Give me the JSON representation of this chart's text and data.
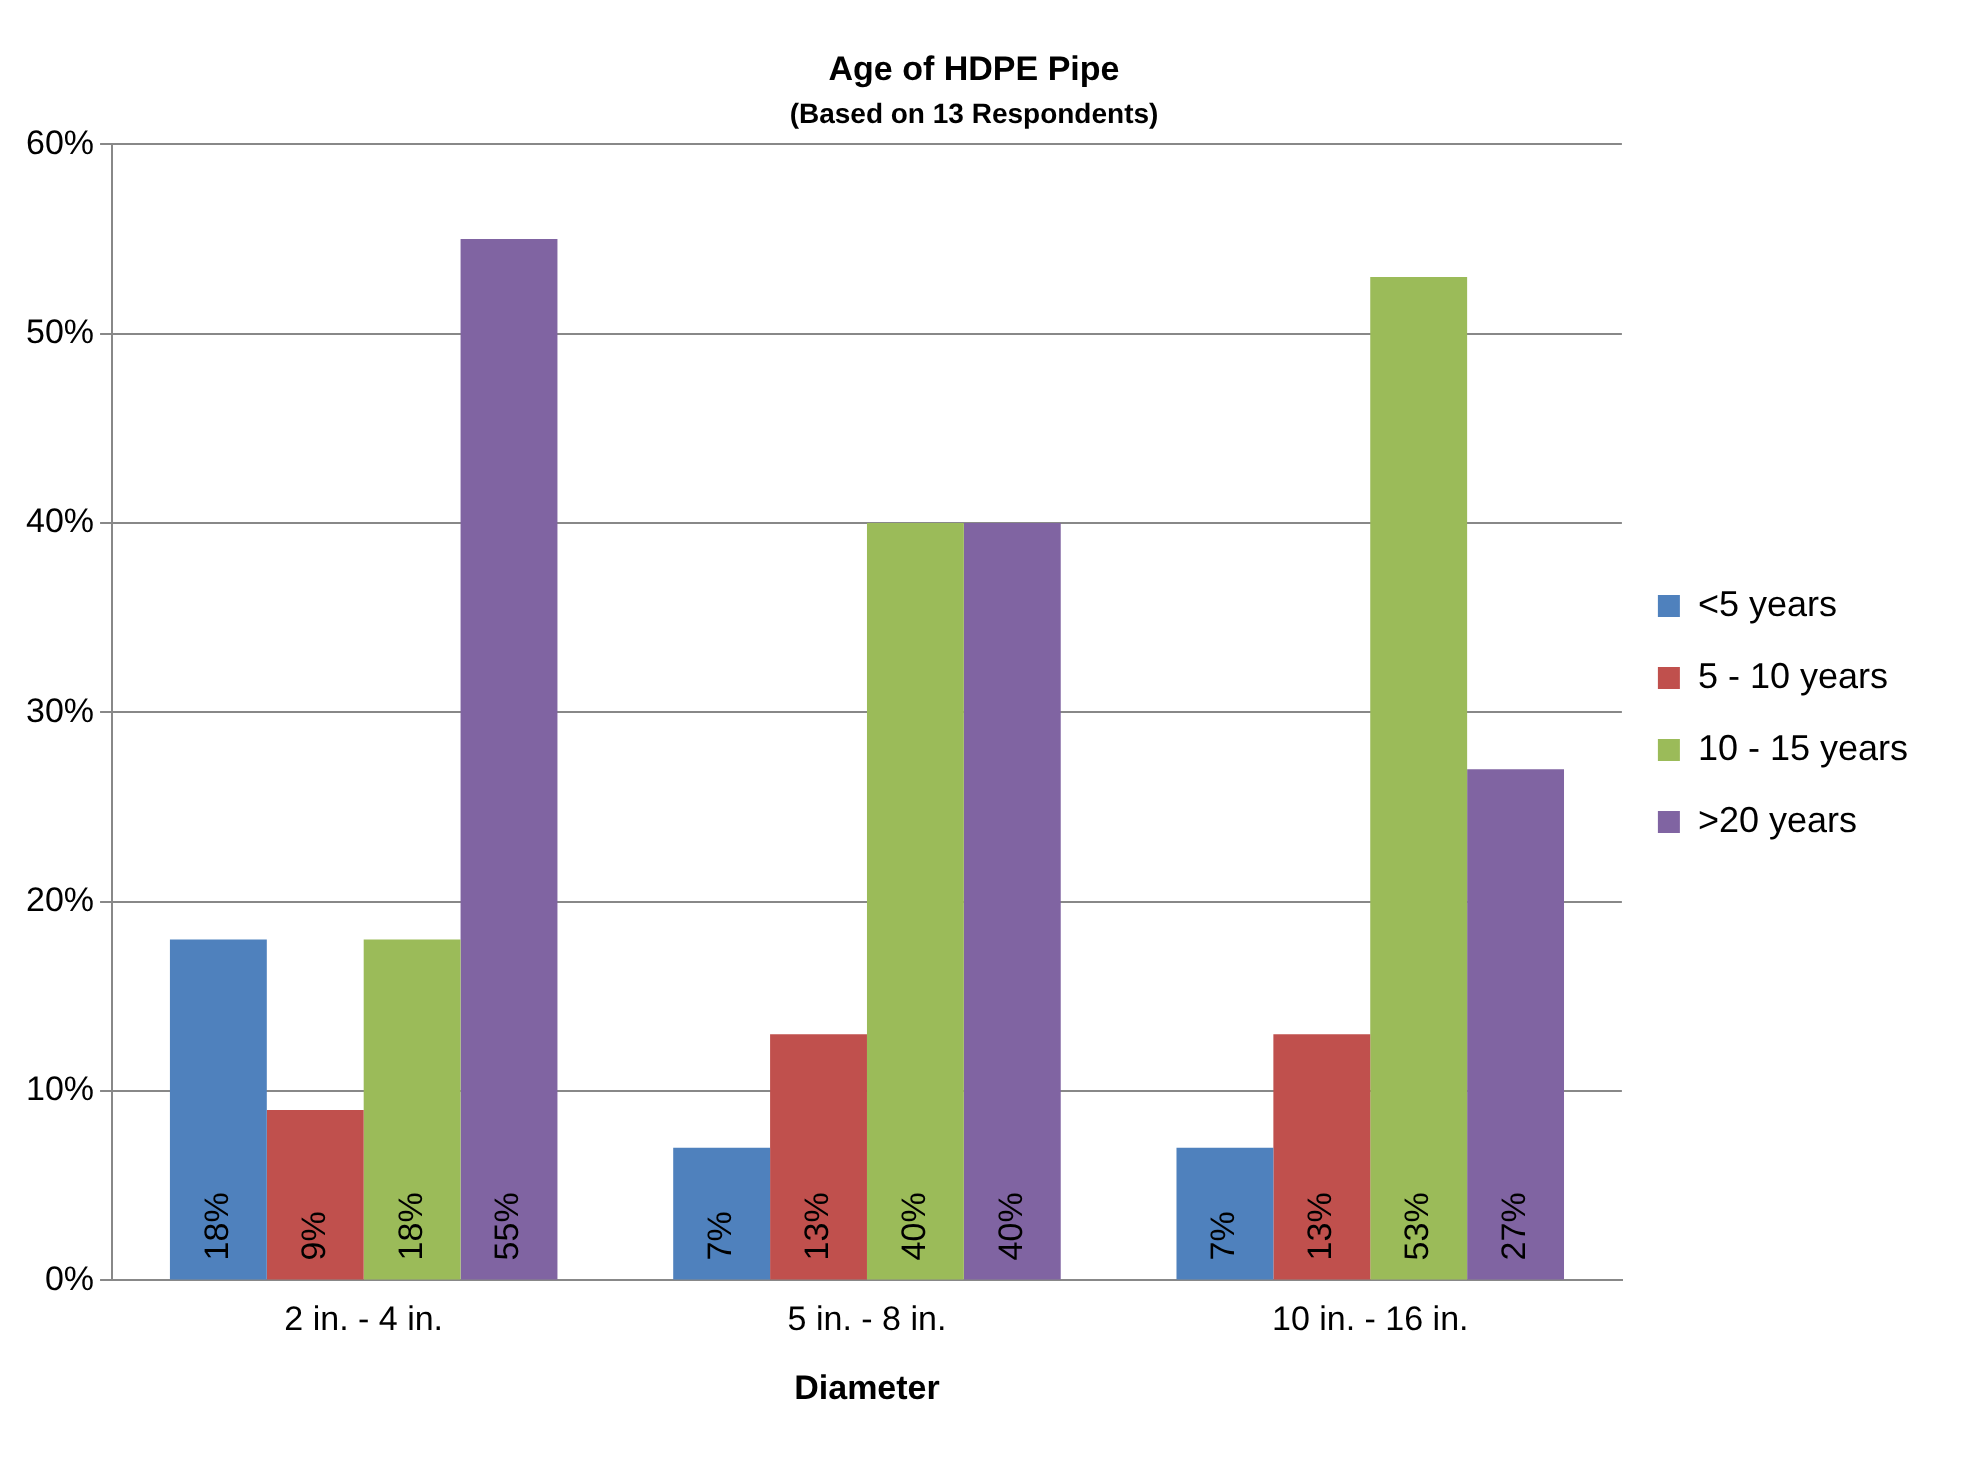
{
  "chart_data": {
    "type": "bar",
    "title": "Age of HDPE Pipe",
    "subtitle": "(Based on 13 Respondents)",
    "xlabel": "Diameter",
    "categories": [
      "2 in. - 4 in.",
      "5 in. - 8 in.",
      "10 in. - 16 in."
    ],
    "series": [
      {
        "name": "<5 years",
        "color": "#4f81bd",
        "values": [
          18,
          7,
          7
        ],
        "value_labels": [
          "18%",
          "7%",
          "7%"
        ]
      },
      {
        "name": "5 - 10 years",
        "color": "#c0504d",
        "values": [
          9,
          13,
          13
        ],
        "value_labels": [
          "9%",
          "13%",
          "13%"
        ]
      },
      {
        "name": "10 - 15 years",
        "color": "#9bbb59",
        "values": [
          18,
          40,
          53
        ],
        "value_labels": [
          "18%",
          "40%",
          "53%"
        ]
      },
      {
        "name": ">20 years",
        "color": "#8064a2",
        "values": [
          55,
          40,
          27
        ],
        "value_labels": [
          "55%",
          "40%",
          "27%"
        ]
      }
    ],
    "ylim": [
      0,
      60
    ],
    "yticks": [
      {
        "value": 0,
        "label": "0%"
      },
      {
        "value": 10,
        "label": "10%"
      },
      {
        "value": 20,
        "label": "20%"
      },
      {
        "value": 30,
        "label": "30%"
      },
      {
        "value": 40,
        "label": "40%"
      },
      {
        "value": 50,
        "label": "50%"
      },
      {
        "value": 60,
        "label": "60%"
      }
    ],
    "grid": "y",
    "legend": "right"
  }
}
